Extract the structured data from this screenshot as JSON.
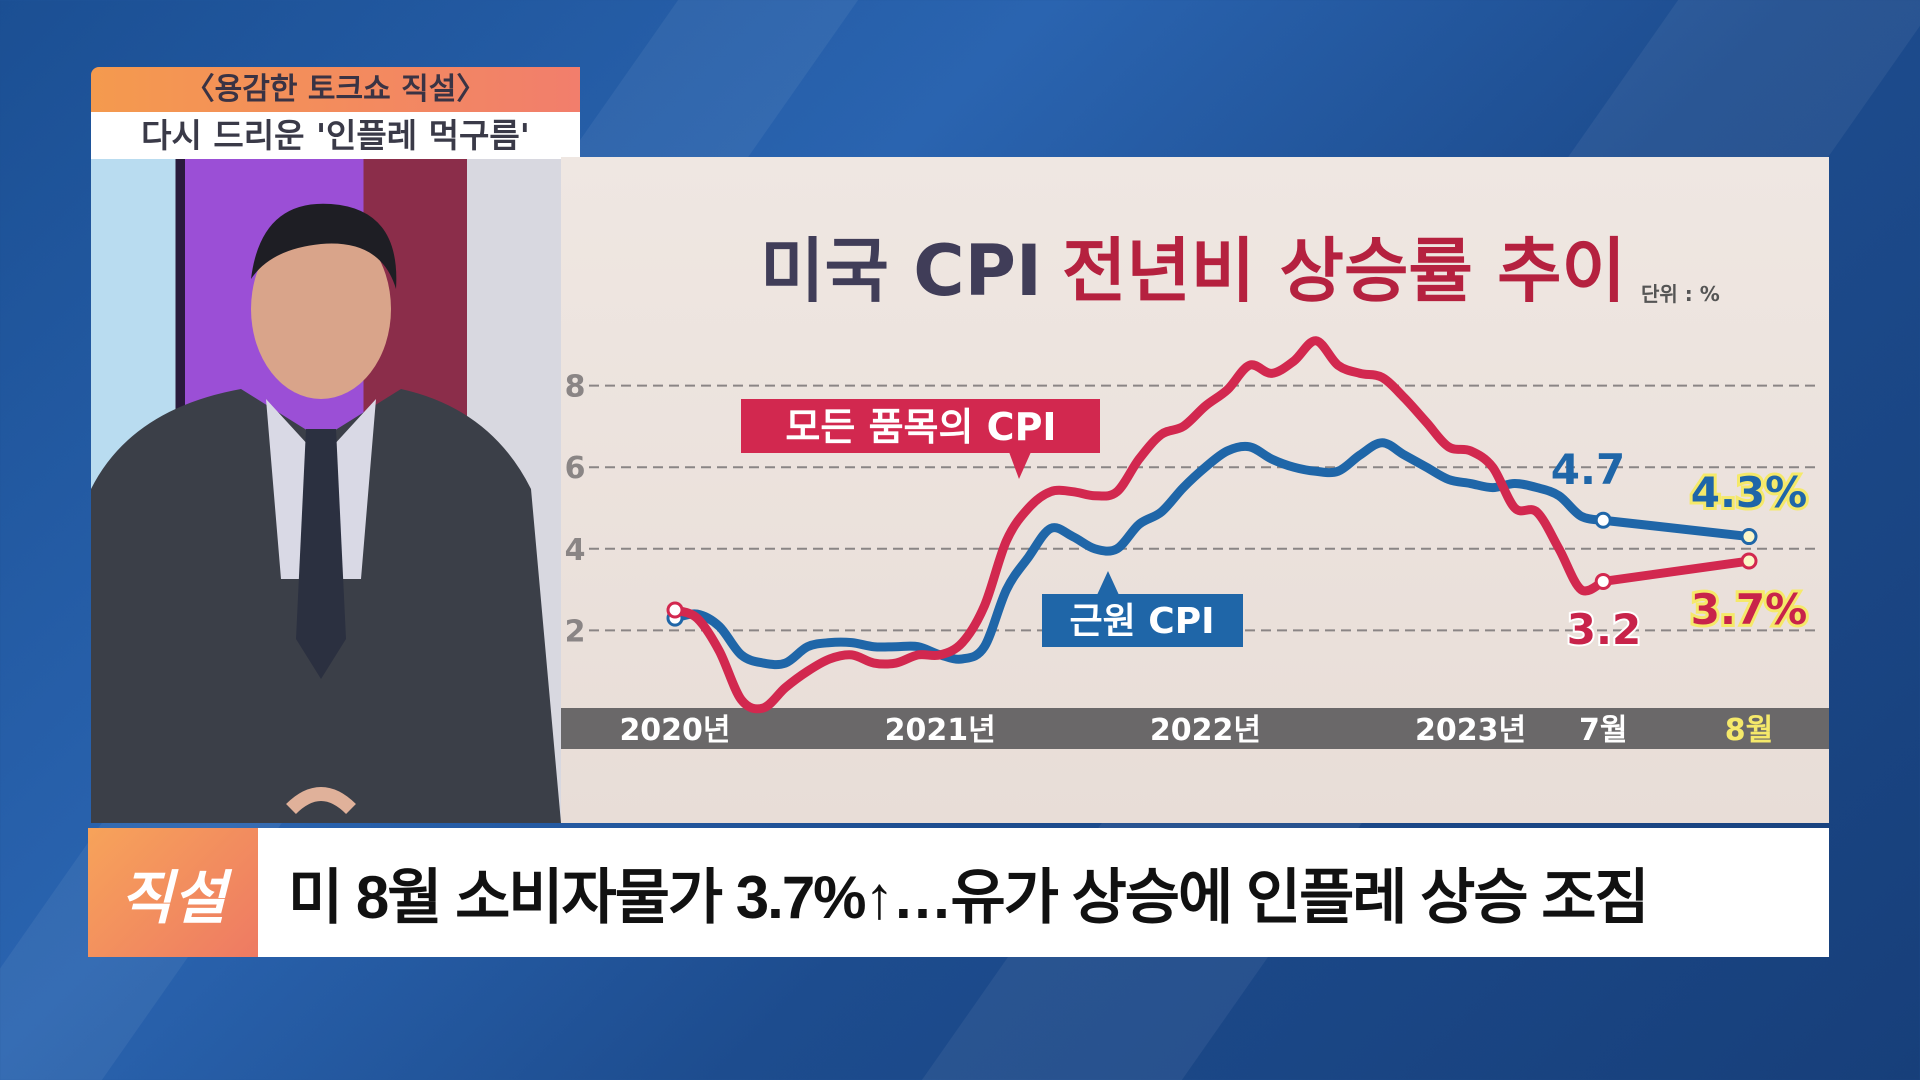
{
  "show": {
    "name": "〈용감한 토크쇼 직설〉",
    "topic": "다시 드리운 '인플레 먹구름'"
  },
  "banner": {
    "tag": "직설",
    "headline": "미 8월 소비자물가 3.7%↑…유가 상승에 인플레 상승 조짐"
  },
  "chart_data": {
    "type": "line",
    "title_part1": "미국 CPI",
    "title_part2": "전년비 상승률 추이",
    "unit": "단위 : %",
    "yticks": [
      "2",
      "4",
      "6",
      "8"
    ],
    "ylim": [
      0,
      9.5
    ],
    "grid": "horizontal dashed",
    "xtick_labels": [
      "2020년",
      "2021년",
      "2022년",
      "2023년",
      "7월",
      "8월"
    ],
    "x": [
      "2020-01",
      "2020-02",
      "2020-03",
      "2020-04",
      "2020-05",
      "2020-06",
      "2020-07",
      "2020-08",
      "2020-09",
      "2020-10",
      "2020-11",
      "2020-12",
      "2021-01",
      "2021-02",
      "2021-03",
      "2021-04",
      "2021-05",
      "2021-06",
      "2021-07",
      "2021-08",
      "2021-09",
      "2021-10",
      "2021-11",
      "2021-12",
      "2022-01",
      "2022-02",
      "2022-03",
      "2022-04",
      "2022-05",
      "2022-06",
      "2022-07",
      "2022-08",
      "2022-09",
      "2022-10",
      "2022-11",
      "2022-12",
      "2023-01",
      "2023-02",
      "2023-03",
      "2023-04",
      "2023-05",
      "2023-06",
      "2023-07",
      "2023-08"
    ],
    "series": [
      {
        "name": "모든 품목의 CPI",
        "color": "#d2284f",
        "values": [
          2.5,
          2.3,
          1.5,
          0.3,
          0.1,
          0.6,
          1.0,
          1.3,
          1.4,
          1.2,
          1.2,
          1.4,
          1.4,
          1.7,
          2.6,
          4.2,
          5.0,
          5.4,
          5.4,
          5.3,
          5.4,
          6.2,
          6.8,
          7.0,
          7.5,
          7.9,
          8.5,
          8.3,
          8.6,
          9.1,
          8.5,
          8.3,
          8.2,
          7.7,
          7.1,
          6.5,
          6.4,
          6.0,
          5.0,
          4.9,
          4.0,
          3.0,
          3.2,
          3.7
        ]
      },
      {
        "name": "근원 CPI",
        "color": "#1f66a8",
        "values": [
          2.3,
          2.4,
          2.1,
          1.4,
          1.2,
          1.2,
          1.6,
          1.7,
          1.7,
          1.6,
          1.6,
          1.6,
          1.4,
          1.3,
          1.6,
          3.0,
          3.8,
          4.5,
          4.3,
          4.0,
          4.0,
          4.6,
          4.9,
          5.5,
          6.0,
          6.4,
          6.5,
          6.2,
          6.0,
          5.9,
          5.9,
          6.3,
          6.6,
          6.3,
          6.0,
          5.7,
          5.6,
          5.5,
          5.6,
          5.5,
          5.3,
          4.8,
          4.7,
          4.3
        ]
      }
    ],
    "annotations": {
      "core_jul": "4.7",
      "core_aug": "4.3%",
      "all_jul": "3.2",
      "all_aug": "3.7%"
    },
    "highlight_color": "#f5e96a"
  }
}
